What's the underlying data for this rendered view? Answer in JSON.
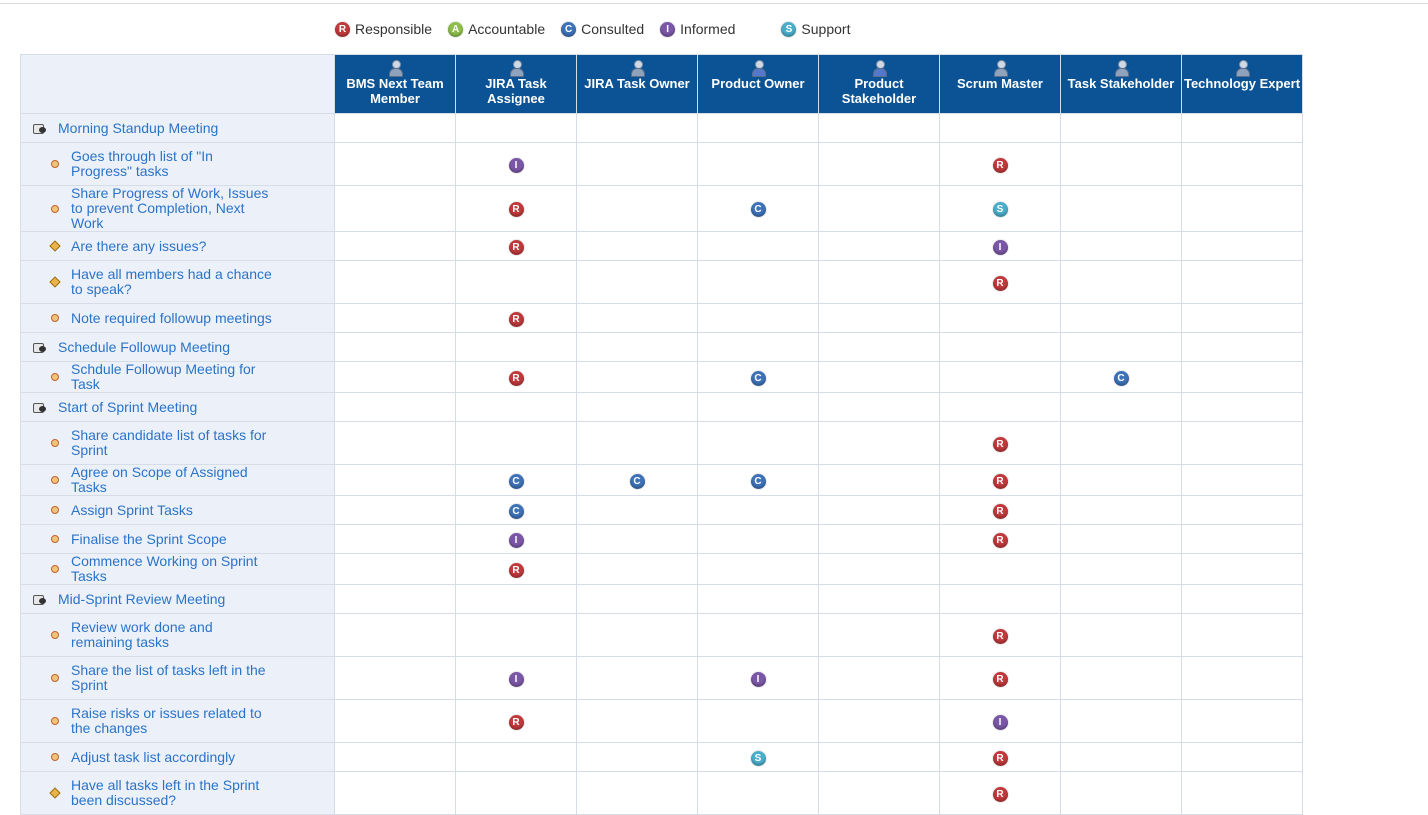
{
  "legend": [
    {
      "code": "R",
      "label": "Responsible"
    },
    {
      "code": "A",
      "label": "Accountable"
    },
    {
      "code": "C",
      "label": "Consulted"
    },
    {
      "code": "I",
      "label": "Informed"
    },
    {
      "code": "S",
      "label": "Support"
    }
  ],
  "colors": {
    "header_bg": "#0b5394",
    "task_col_bg": "#ecf1f9",
    "link_text": "#2a73c9",
    "R": "#c0393b",
    "A": "#8dbf4a",
    "C": "#3e72b8",
    "I": "#7a57a6",
    "S": "#4aaecb"
  },
  "roles": [
    {
      "name": "BMS Next Team Member",
      "icon": "user-icon"
    },
    {
      "name": "JIRA Task Assignee",
      "icon": "user-icon"
    },
    {
      "name": "JIRA Task Owner",
      "icon": "user-icon"
    },
    {
      "name": "Product Owner",
      "icon": "user-chair-icon"
    },
    {
      "name": "Product Stakeholder",
      "icon": "user-chair-icon"
    },
    {
      "name": "Scrum Master",
      "icon": "user-icon"
    },
    {
      "name": "Task Stakeholder",
      "icon": "user-icon"
    },
    {
      "name": "Technology Expert",
      "icon": "user-icon"
    }
  ],
  "rows": [
    {
      "kind": "group",
      "label": "Morning Standup Meeting",
      "cells": [
        "",
        "",
        "",
        "",
        "",
        "",
        "",
        ""
      ]
    },
    {
      "kind": "task",
      "lines": 2,
      "label": "Goes through list of \"In Progress\" tasks",
      "cells": [
        "",
        "I",
        "",
        "",
        "",
        "R",
        "",
        ""
      ]
    },
    {
      "kind": "task",
      "lines": 2,
      "label": "Share Progress of Work, Issues to prevent Completion, Next Work",
      "cells": [
        "",
        "R",
        "",
        "C",
        "",
        "S",
        "",
        ""
      ]
    },
    {
      "kind": "decision",
      "lines": 1,
      "label": "Are there any issues?",
      "cells": [
        "",
        "R",
        "",
        "",
        "",
        "I",
        "",
        ""
      ]
    },
    {
      "kind": "decision",
      "lines": 2,
      "label": "Have all members had a chance to speak?",
      "cells": [
        "",
        "",
        "",
        "",
        "",
        "R",
        "",
        ""
      ]
    },
    {
      "kind": "task",
      "lines": 1,
      "label": "Note required followup meetings",
      "cells": [
        "",
        "R",
        "",
        "",
        "",
        "",
        "",
        ""
      ]
    },
    {
      "kind": "group",
      "label": "Schedule Followup Meeting",
      "cells": [
        "",
        "",
        "",
        "",
        "",
        "",
        "",
        ""
      ]
    },
    {
      "kind": "task",
      "lines": 1,
      "label": "Schdule Followup Meeting for Task",
      "cells": [
        "",
        "R",
        "",
        "C",
        "",
        "",
        "C",
        ""
      ]
    },
    {
      "kind": "group",
      "label": "Start of Sprint Meeting",
      "cells": [
        "",
        "",
        "",
        "",
        "",
        "",
        "",
        ""
      ]
    },
    {
      "kind": "task",
      "lines": 2,
      "label": "Share candidate list of tasks for Sprint",
      "cells": [
        "",
        "",
        "",
        "",
        "",
        "R",
        "",
        ""
      ]
    },
    {
      "kind": "task",
      "lines": 1,
      "label": "Agree on Scope of Assigned Tasks",
      "cells": [
        "",
        "C",
        "C",
        "C",
        "",
        "R",
        "",
        ""
      ]
    },
    {
      "kind": "task",
      "lines": 1,
      "label": "Assign Sprint Tasks",
      "cells": [
        "",
        "C",
        "",
        "",
        "",
        "R",
        "",
        ""
      ]
    },
    {
      "kind": "task",
      "lines": 1,
      "label": "Finalise the Sprint Scope",
      "cells": [
        "",
        "I",
        "",
        "",
        "",
        "R",
        "",
        ""
      ]
    },
    {
      "kind": "task",
      "lines": 1,
      "label": "Commence Working on Sprint Tasks",
      "cells": [
        "",
        "R",
        "",
        "",
        "",
        "",
        "",
        ""
      ]
    },
    {
      "kind": "group",
      "label": "Mid-Sprint Review Meeting",
      "cells": [
        "",
        "",
        "",
        "",
        "",
        "",
        "",
        ""
      ]
    },
    {
      "kind": "task",
      "lines": 2,
      "label": "Review work done and remaining tasks",
      "cells": [
        "",
        "",
        "",
        "",
        "",
        "R",
        "",
        ""
      ]
    },
    {
      "kind": "task",
      "lines": 2,
      "label": "Share the list of tasks left in the Sprint",
      "cells": [
        "",
        "I",
        "",
        "I",
        "",
        "R",
        "",
        ""
      ]
    },
    {
      "kind": "task",
      "lines": 2,
      "label": "Raise risks or issues related to the changes",
      "cells": [
        "",
        "R",
        "",
        "",
        "",
        "I",
        "",
        ""
      ]
    },
    {
      "kind": "task",
      "lines": 1,
      "label": "Adjust task list accordingly",
      "cells": [
        "",
        "",
        "",
        "S",
        "",
        "R",
        "",
        ""
      ]
    },
    {
      "kind": "decision",
      "lines": 2,
      "label": "Have all tasks left in the Sprint been discussed?",
      "cells": [
        "",
        "",
        "",
        "",
        "",
        "R",
        "",
        ""
      ]
    }
  ]
}
